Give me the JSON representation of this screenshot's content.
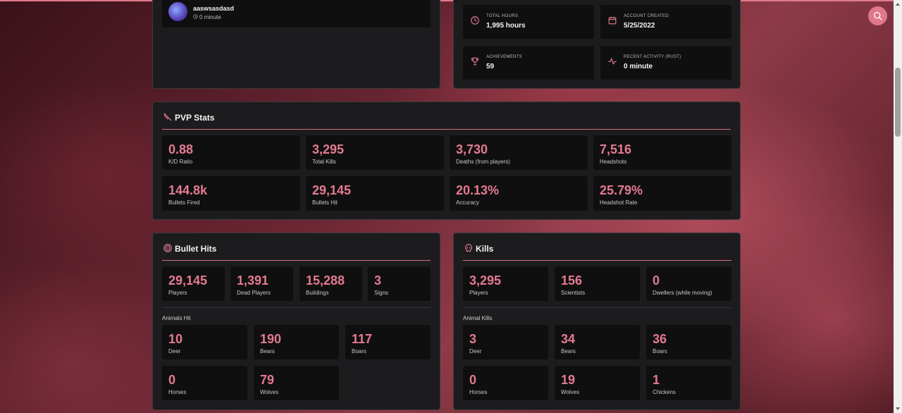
{
  "profile": {
    "username": "aaswsasdasd",
    "last_seen": "0 minute"
  },
  "account": {
    "items": [
      {
        "icon": "clock-icon",
        "label": "TOTAL HOURS",
        "value": "1,995 hours"
      },
      {
        "icon": "calendar-icon",
        "label": "ACCOUNT CREATED",
        "value": "5/25/2022"
      },
      {
        "icon": "trophy-icon",
        "label": "ACHIEVEMENTS",
        "value": "59"
      },
      {
        "icon": "activity-icon",
        "label": "RECENT ACTIVITY (RUST)",
        "value": "0 minute"
      }
    ]
  },
  "pvp": {
    "title": "PVP Stats",
    "stats": [
      {
        "value": "0.88",
        "label": "K/D Ratio"
      },
      {
        "value": "3,295",
        "label": "Total Kills"
      },
      {
        "value": "3,730",
        "label": "Deaths (from players)"
      },
      {
        "value": "7,516",
        "label": "Headshots"
      },
      {
        "value": "144.8k",
        "label": "Bullets Fired"
      },
      {
        "value": "29,145",
        "label": "Bullets Hit"
      },
      {
        "value": "20.13%",
        "label": "Accuracy"
      },
      {
        "value": "25.79%",
        "label": "Headshot Rate"
      }
    ]
  },
  "bullet_hits": {
    "title": "Bullet Hits",
    "stats": [
      {
        "value": "29,145",
        "label": "Players"
      },
      {
        "value": "1,391",
        "label": "Dead Players"
      },
      {
        "value": "15,288",
        "label": "Buildings"
      },
      {
        "value": "3",
        "label": "Signs"
      }
    ],
    "animals_title": "Animals Hit",
    "animals": [
      {
        "value": "10",
        "label": "Deer"
      },
      {
        "value": "190",
        "label": "Bears"
      },
      {
        "value": "117",
        "label": "Boars"
      },
      {
        "value": "0",
        "label": "Horses"
      },
      {
        "value": "79",
        "label": "Wolves"
      }
    ]
  },
  "kills": {
    "title": "Kills",
    "stats": [
      {
        "value": "3,295",
        "label": "Players"
      },
      {
        "value": "156",
        "label": "Scientists"
      },
      {
        "value": "0",
        "label": "Dwellers (while moving)"
      }
    ],
    "animals_title": "Animal Kills",
    "animals": [
      {
        "value": "3",
        "label": "Deer"
      },
      {
        "value": "34",
        "label": "Bears"
      },
      {
        "value": "36",
        "label": "Boars"
      },
      {
        "value": "0",
        "label": "Horses"
      },
      {
        "value": "19",
        "label": "Wolves"
      },
      {
        "value": "1",
        "label": "Chickens"
      }
    ]
  },
  "colors": {
    "accent": "#e57a90",
    "card": "#1c1c1e",
    "tile": "#0f0f10"
  }
}
